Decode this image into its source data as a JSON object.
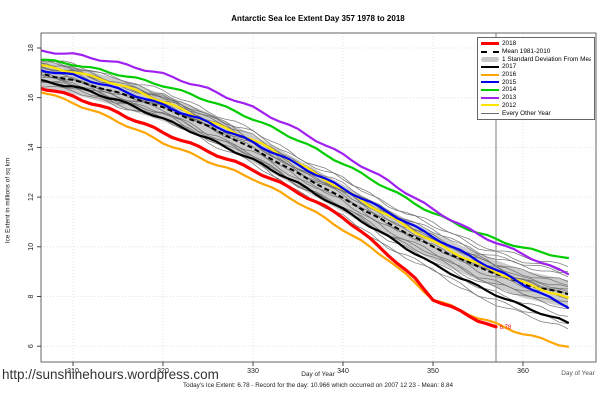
{
  "title": "Antarctic Sea Ice Extent Day 357 1978 to 2018",
  "watermark": "http://sunshinehours.wordpress.com",
  "footer": "Today's Ice Extent: 6.78  - Record for the day: 10.966 which occurred on 2007 12 23  - Mean: 8.84",
  "chart_data": {
    "type": "line",
    "title": "Antarctic Sea Ice Extent Day 357 1978 to 2018",
    "xlabel": "Day of Year",
    "ylabel": "Ice Extent in millions of sq km",
    "xlim": [
      306,
      368
    ],
    "ylim": [
      5.4,
      18.6
    ],
    "xticks": [
      310,
      320,
      330,
      340,
      350,
      360
    ],
    "yticks": [
      6,
      8,
      10,
      12,
      14,
      16,
      18
    ],
    "grid": true,
    "legend_position": "top-right",
    "vline_day": 357,
    "annotation": {
      "text": "6.78",
      "day": 357,
      "value": 6.78,
      "color": "#FF0000"
    },
    "control_days": [
      306,
      310,
      315,
      320,
      325,
      330,
      335,
      340,
      345,
      350,
      355,
      360,
      365
    ],
    "mean": {
      "label": "Mean 1981-2010",
      "color": "#000000",
      "values": [
        17.0,
        16.7,
        16.2,
        15.6,
        14.85,
        13.95,
        12.95,
        11.95,
        10.95,
        10.0,
        9.2,
        8.5,
        8.1
      ]
    },
    "band": {
      "label": "1 Standard Deviation From Mean",
      "color": "#c9c9c9",
      "upper": [
        17.55,
        17.25,
        16.75,
        16.15,
        15.4,
        14.5,
        13.5,
        12.5,
        11.5,
        10.55,
        9.75,
        9.05,
        8.65
      ],
      "lower": [
        16.45,
        16.15,
        15.65,
        15.05,
        14.3,
        13.4,
        12.4,
        11.4,
        10.4,
        9.45,
        8.65,
        7.95,
        7.55
      ]
    },
    "series": [
      {
        "name": "2012",
        "color": "#ffe400",
        "width": 2.2,
        "values": [
          17.3,
          17.05,
          16.55,
          15.85,
          15.05,
          14.3,
          13.35,
          12.3,
          11.25,
          10.2,
          9.3,
          8.55,
          7.95
        ]
      },
      {
        "name": "2015",
        "color": "#0000ee",
        "width": 2.2,
        "values": [
          17.15,
          16.9,
          16.35,
          15.7,
          15.0,
          14.2,
          13.3,
          12.35,
          11.4,
          10.4,
          9.45,
          8.5,
          7.55
        ]
      },
      {
        "name": "2014",
        "color": "#00cc00",
        "width": 2.2,
        "values": [
          17.55,
          17.35,
          16.95,
          16.5,
          15.9,
          15.15,
          14.3,
          13.35,
          12.35,
          11.35,
          10.55,
          9.95,
          9.55
        ]
      },
      {
        "name": "2013",
        "color": "#a020f0",
        "width": 2.2,
        "values": [
          17.9,
          17.75,
          17.4,
          16.95,
          16.35,
          15.6,
          14.7,
          13.7,
          12.65,
          11.5,
          10.5,
          9.7,
          8.9
        ]
      },
      {
        "name": "2016",
        "color": "#ffa500",
        "width": 2.2,
        "values": [
          16.3,
          15.8,
          15.05,
          14.2,
          13.45,
          12.75,
          11.8,
          10.7,
          9.5,
          7.9,
          7.15,
          6.5,
          5.98
        ]
      },
      {
        "name": "2017",
        "color": "#000000",
        "width": 2.2,
        "values": [
          16.7,
          16.45,
          15.9,
          15.15,
          14.35,
          13.5,
          12.55,
          11.5,
          10.4,
          9.3,
          8.4,
          7.6,
          6.95
        ]
      },
      {
        "name": "2018",
        "color": "#ff0000",
        "width": 3.2,
        "days": [
          306,
          310,
          315,
          320,
          325,
          330,
          335,
          340,
          345,
          348,
          350,
          353,
          355,
          357
        ],
        "values": [
          16.45,
          16.05,
          15.4,
          14.6,
          13.85,
          13.1,
          12.2,
          11.2,
          9.7,
          8.7,
          7.9,
          7.4,
          7.05,
          6.78
        ]
      }
    ],
    "every_other_year": {
      "label": "Every Other Year",
      "color": "#6b6b6b",
      "lines": [
        [
          17.55,
          17.36,
          16.75,
          16.3,
          15.45,
          14.7,
          13.61,
          12.76,
          11.67,
          10.87,
          9.98,
          9.43,
          9.0
        ],
        [
          17.4,
          17.01,
          16.66,
          15.9,
          15.3,
          14.23,
          13.38,
          12.21,
          11.36,
          10.25,
          9.6,
          8.73,
          8.4
        ],
        [
          17.3,
          17.01,
          16.29,
          15.78,
          14.8,
          14.0,
          12.77,
          11.86,
          10.64,
          9.78,
          8.75,
          8.15,
          7.6
        ],
        [
          17.6,
          17.19,
          16.81,
          16.02,
          15.4,
          14.3,
          13.43,
          12.24,
          11.36,
          10.22,
          9.55,
          8.65,
          8.3
        ],
        [
          17.2,
          17.06,
          16.47,
          16.11,
          15.27,
          14.61,
          13.52,
          12.76,
          11.67,
          10.96,
          10.07,
          9.61,
          9.2
        ],
        [
          17.1,
          16.8,
          16.05,
          15.53,
          14.54,
          13.71,
          12.47,
          11.55,
          10.3,
          9.43,
          8.39,
          7.76,
          7.2
        ],
        [
          16.9,
          16.73,
          16.12,
          15.73,
          14.87,
          14.18,
          13.07,
          12.28,
          11.17,
          10.43,
          9.52,
          9.03,
          8.6
        ],
        [
          16.75,
          16.45,
          15.71,
          15.19,
          14.2,
          13.38,
          12.15,
          11.23,
          9.99,
          9.12,
          8.08,
          7.46,
          6.9
        ],
        [
          16.6,
          16.42,
          15.8,
          15.4,
          14.54,
          13.84,
          12.72,
          11.92,
          10.8,
          10.06,
          9.14,
          8.64,
          8.2
        ],
        [
          17.45,
          17.18,
          16.46,
          15.97,
          15.0,
          14.21,
          13.0,
          12.1,
          10.89,
          10.04,
          9.03,
          8.43,
          7.9
        ],
        [
          16.85,
          16.59,
          15.89,
          15.42,
          14.47,
          13.69,
          12.49,
          11.62,
          10.42,
          9.59,
          8.59,
          8.02,
          7.5
        ],
        [
          17.25,
          17.07,
          16.45,
          16.04,
          15.17,
          14.47,
          13.35,
          12.54,
          11.42,
          10.67,
          9.75,
          9.24,
          8.8
        ],
        [
          16.5,
          16.3,
          15.65,
          15.23,
          14.34,
          13.61,
          12.47,
          11.65,
          10.5,
          9.73,
          8.79,
          8.26,
          7.8
        ],
        [
          17.05,
          16.71,
          15.93,
          15.37,
          14.34,
          13.48,
          12.2,
          11.23,
          9.95,
          9.04,
          7.96,
          7.3,
          6.7
        ],
        [
          16.7,
          16.58,
          16.01,
          15.67,
          14.85,
          14.21,
          13.15,
          12.4,
          11.34,
          10.64,
          9.78,
          9.33,
          8.95
        ],
        [
          17.5,
          17.24,
          16.54,
          16.05,
          15.1,
          14.32,
          13.12,
          12.24,
          11.04,
          10.2,
          9.2,
          8.62,
          8.1
        ],
        [
          16.95,
          16.76,
          16.14,
          15.73,
          14.85,
          14.15,
          13.02,
          12.21,
          11.09,
          10.33,
          9.4,
          8.9,
          8.45
        ]
      ]
    },
    "legend": [
      {
        "label": "2018",
        "color": "#ff0000",
        "style": "thick"
      },
      {
        "label": "Mean 1981-2010",
        "color": "#000000",
        "style": "dashed"
      },
      {
        "label": "1 Standard Deviation From Mean",
        "color": "#c9c9c9",
        "style": "band"
      },
      {
        "label": "2017",
        "color": "#000000",
        "style": "line"
      },
      {
        "label": "2016",
        "color": "#ffa500",
        "style": "line"
      },
      {
        "label": "2015",
        "color": "#0000ee",
        "style": "line"
      },
      {
        "label": "2014",
        "color": "#00cc00",
        "style": "line"
      },
      {
        "label": "2013",
        "color": "#a020f0",
        "style": "line"
      },
      {
        "label": "2012",
        "color": "#ffe400",
        "style": "line"
      },
      {
        "label": "Every Other Year",
        "color": "#6b6b6b",
        "style": "thin"
      }
    ]
  }
}
